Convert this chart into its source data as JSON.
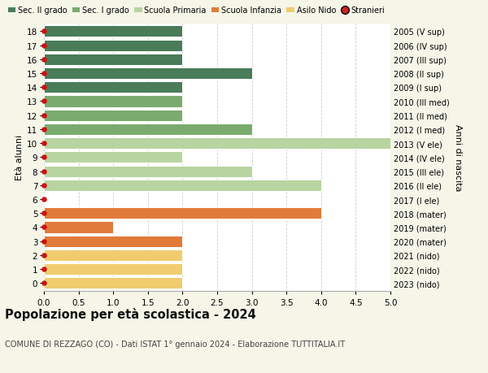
{
  "ages": [
    18,
    17,
    16,
    15,
    14,
    13,
    12,
    11,
    10,
    9,
    8,
    7,
    6,
    5,
    4,
    3,
    2,
    1,
    0
  ],
  "years": [
    "2005 (V sup)",
    "2006 (IV sup)",
    "2007 (III sup)",
    "2008 (II sup)",
    "2009 (I sup)",
    "2010 (III med)",
    "2011 (II med)",
    "2012 (I med)",
    "2013 (V ele)",
    "2014 (IV ele)",
    "2015 (III ele)",
    "2016 (II ele)",
    "2017 (I ele)",
    "2018 (mater)",
    "2019 (mater)",
    "2020 (mater)",
    "2021 (nido)",
    "2022 (nido)",
    "2023 (nido)"
  ],
  "values": [
    2,
    2,
    2,
    3,
    2,
    2,
    2,
    3,
    5,
    2,
    3,
    4,
    0,
    4,
    1,
    2,
    2,
    2,
    2
  ],
  "bar_colors": [
    "#4a7c59",
    "#4a7c59",
    "#4a7c59",
    "#4a7c59",
    "#4a7c59",
    "#7aab6e",
    "#7aab6e",
    "#7aab6e",
    "#b8d4a0",
    "#b8d4a0",
    "#b8d4a0",
    "#b8d4a0",
    "#b8d4a0",
    "#e07b39",
    "#e07b39",
    "#e07b39",
    "#f0cc6e",
    "#f0cc6e",
    "#f0cc6e"
  ],
  "stranieri_dots": [
    18,
    17,
    16,
    15,
    14,
    13,
    12,
    11,
    10,
    9,
    8,
    7,
    6,
    5,
    4,
    3,
    2,
    1,
    0
  ],
  "legend_labels": [
    "Sec. II grado",
    "Sec. I grado",
    "Scuola Primaria",
    "Scuola Infanzia",
    "Asilo Nido",
    "Stranieri"
  ],
  "legend_colors": [
    "#4a7c59",
    "#7aab6e",
    "#b8d4a0",
    "#e07b39",
    "#f0cc6e",
    "#cc2222"
  ],
  "title": "Popolazione per età scolastica - 2024",
  "subtitle": "COMUNE DI REZZAGO (CO) - Dati ISTAT 1° gennaio 2024 - Elaborazione TUTTITALIA.IT",
  "ylabel_left": "Età alunni",
  "ylabel_right": "Anni di nascita",
  "xlim": [
    0,
    5.0
  ],
  "xticks": [
    0,
    0.5,
    1.0,
    1.5,
    2.0,
    2.5,
    3.0,
    3.5,
    4.0,
    4.5,
    5.0
  ],
  "bg_color": "#f5f5e8",
  "plot_bg_color": "#ffffff",
  "dot_color": "#cc1111",
  "dot_size": 22,
  "bar_height": 0.82,
  "grid_color": "#cccccc",
  "ylim_min": -0.55,
  "ylim_max": 18.55
}
